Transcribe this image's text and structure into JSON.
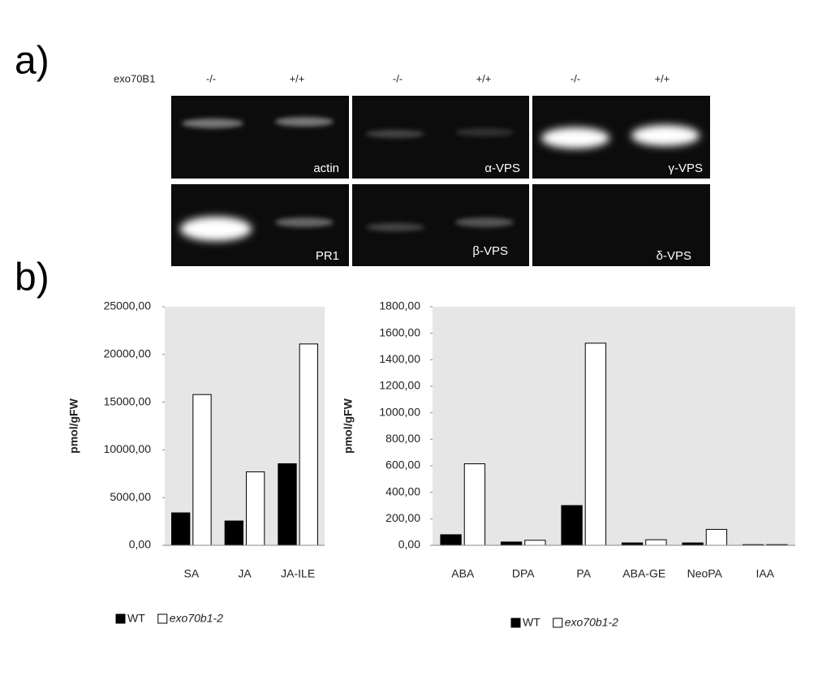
{
  "panel_labels": [
    "a)",
    "b)"
  ],
  "gel": {
    "row_label": "exo70B1",
    "lane_labels": [
      "-/-",
      "+/+",
      "-/-",
      "+/+",
      "-/-",
      "+/+"
    ],
    "gene_labels": [
      "actin",
      "α-VPS",
      "γ-VPS",
      "PR1",
      "β-VPS",
      "δ-VPS"
    ]
  },
  "chart_data": [
    {
      "type": "bar",
      "y_label": "pmol/gFW",
      "categories": [
        "SA",
        "JA",
        "JA-ILE"
      ],
      "series": [
        {
          "name": "WT",
          "color": "#000000",
          "values": [
            3400,
            2550,
            8550
          ]
        },
        {
          "name": "exo70b1-2",
          "color": "#ffffff",
          "values": [
            15800,
            7700,
            21100
          ]
        }
      ],
      "ylim": [
        0,
        25000
      ],
      "yticks": [
        {
          "value": 0,
          "label": "0,00"
        },
        {
          "value": 5000,
          "label": "5000,00"
        },
        {
          "value": 10000,
          "label": "10000,00"
        },
        {
          "value": 15000,
          "label": "15000,00"
        },
        {
          "value": 20000,
          "label": "20000,00"
        },
        {
          "value": 25000,
          "label": "25000,00"
        }
      ],
      "background": "#e6e6e6"
    },
    {
      "type": "bar",
      "y_label": "pmol/gFW",
      "categories": [
        "ABA",
        "DPA",
        "PA",
        "ABA-GE",
        "NeoPA",
        "IAA"
      ],
      "series": [
        {
          "name": "WT",
          "color": "#000000",
          "values": [
            80,
            25,
            300,
            18,
            18,
            5
          ]
        },
        {
          "name": "exo70b1-2",
          "color": "#ffffff",
          "values": [
            615,
            38,
            1525,
            42,
            120,
            5
          ]
        }
      ],
      "ylim": [
        0,
        1800
      ],
      "yticks": [
        {
          "value": 0,
          "label": "0,00"
        },
        {
          "value": 200,
          "label": "200,00"
        },
        {
          "value": 400,
          "label": "400,00"
        },
        {
          "value": 600,
          "label": "600,00"
        },
        {
          "value": 800,
          "label": "800,00"
        },
        {
          "value": 1000,
          "label": "1000,00"
        },
        {
          "value": 1200,
          "label": "1200,00"
        },
        {
          "value": 1400,
          "label": "1400,00"
        },
        {
          "value": 1600,
          "label": "1600,00"
        },
        {
          "value": 1800,
          "label": "1800,00"
        }
      ],
      "background": "#e6e6e6"
    }
  ]
}
